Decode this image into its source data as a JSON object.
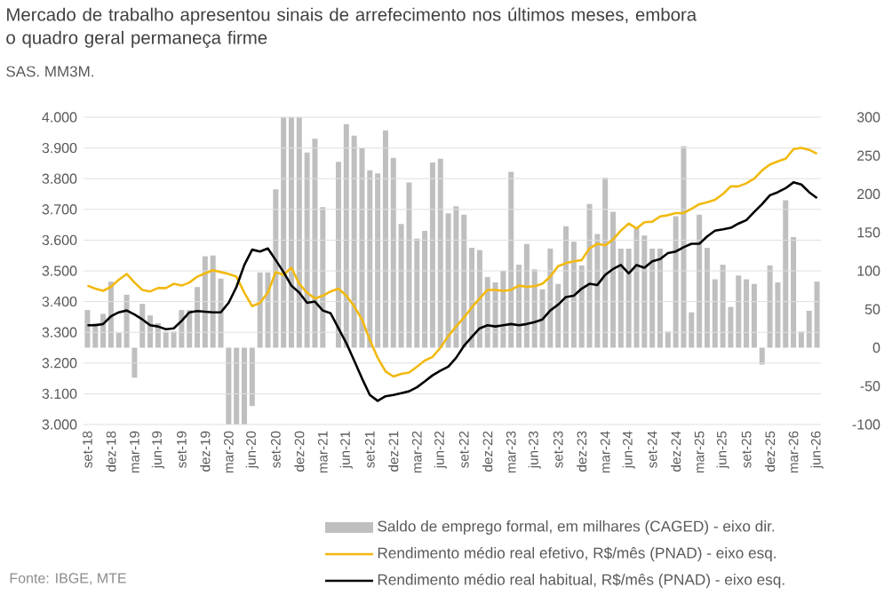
{
  "chart_data": {
    "type": "line",
    "title": "Mercado de trabalho apresentou sinais de arrefecimento nos últimos meses, embora o quadro geral permaneça firme",
    "subtitle": "SAS. MM3M.",
    "categories": [
      "set-18",
      null,
      null,
      "dez-18",
      null,
      null,
      "mar-19",
      null,
      null,
      "jun-19",
      null,
      null,
      "set-19",
      null,
      null,
      "dez-19",
      null,
      null,
      "mar-20",
      null,
      null,
      "jun-20",
      null,
      null,
      "set-20",
      null,
      null,
      "dez-20",
      null,
      null,
      "mar-21",
      null,
      null,
      "jun-21",
      null,
      null,
      "set-21",
      null,
      null,
      "dez-21",
      null,
      null,
      "mar-22",
      null,
      null,
      "jun-22",
      null,
      null,
      "set-22",
      null,
      null,
      "dez-22",
      null,
      null,
      "mar-23",
      null,
      null,
      "jun-23",
      null,
      null,
      "set-23",
      null,
      null,
      "dez-23",
      null,
      null,
      "mar-24",
      null,
      null,
      "jun-24",
      null,
      null,
      "set-24",
      null,
      null,
      "dez-24",
      null,
      null,
      "mar-25",
      null,
      null,
      "jun-25",
      null,
      null,
      "set-25",
      null,
      null,
      "dez-25",
      null,
      null,
      "mar-26",
      null,
      null,
      "jun-26"
    ],
    "series": [
      {
        "name": "Saldo de emprego formal, em milhares (CAGED) - eixo dir.",
        "type": "bar",
        "axis": "y2",
        "color": "#bfbfbf",
        "values": [
          49,
          32,
          44,
          86,
          19,
          69,
          -39,
          57,
          42,
          32,
          21,
          21,
          49,
          49,
          79,
          119,
          120,
          90,
          -100,
          -100,
          -100,
          -76,
          98,
          98,
          206,
          300,
          300,
          300,
          254,
          272,
          183,
          null,
          242,
          291,
          276,
          260,
          231,
          227,
          283,
          247,
          161,
          215,
          142,
          152,
          241,
          246,
          175,
          184,
          173,
          130,
          127,
          92,
          85,
          100,
          229,
          108,
          135,
          102,
          76,
          129,
          83,
          158,
          138,
          107,
          187,
          148,
          221,
          177,
          129,
          129,
          156,
          146,
          129,
          129,
          21,
          171,
          262,
          46,
          173,
          130,
          89,
          108,
          53,
          94,
          89,
          83,
          -22,
          107,
          85,
          192,
          144,
          21,
          48,
          86
        ]
      },
      {
        "name": "Rendimento médio real efetivo, R$/mês (PNAD) - eixo esq.",
        "axis": "y",
        "color": "#f2b90f",
        "values": [
          3452,
          3442,
          3435,
          3448,
          3471,
          3490,
          3462,
          3438,
          3433,
          3444,
          3444,
          3458,
          3452,
          3462,
          3481,
          3492,
          3502,
          3496,
          3490,
          3481,
          3429,
          3385,
          3396,
          3429,
          3496,
          3487,
          3510,
          3458,
          3429,
          3410,
          3419,
          3433,
          3442,
          3419,
          3385,
          3342,
          3275,
          3217,
          3173,
          3156,
          3165,
          3169,
          3188,
          3208,
          3220,
          3250,
          3288,
          3319,
          3348,
          3381,
          3410,
          3438,
          3438,
          3435,
          3438,
          3452,
          3448,
          3450,
          3458,
          3481,
          3515,
          3525,
          3531,
          3535,
          3573,
          3588,
          3583,
          3602,
          3631,
          3654,
          3638,
          3658,
          3660,
          3677,
          3681,
          3688,
          3688,
          3702,
          3717,
          3723,
          3731,
          3750,
          3775,
          3775,
          3785,
          3800,
          3827,
          3846,
          3856,
          3865,
          3896,
          3900,
          3894,
          3881
        ]
      },
      {
        "name": "Rendimento médio real habitual, R$/mês (PNAD) - eixo esq.",
        "axis": "y",
        "color": "#000000",
        "values": [
          3323,
          3323,
          3327,
          3352,
          3365,
          3371,
          3358,
          3342,
          3323,
          3319,
          3310,
          3313,
          3337,
          3365,
          3369,
          3367,
          3365,
          3365,
          3396,
          3448,
          3519,
          3569,
          3563,
          3573,
          3535,
          3496,
          3452,
          3429,
          3396,
          3400,
          3371,
          3362,
          3313,
          3265,
          3208,
          3150,
          3096,
          3077,
          3092,
          3096,
          3102,
          3108,
          3121,
          3140,
          3160,
          3175,
          3188,
          3217,
          3256,
          3285,
          3313,
          3323,
          3319,
          3323,
          3327,
          3323,
          3327,
          3333,
          3342,
          3371,
          3390,
          3415,
          3419,
          3442,
          3458,
          3454,
          3487,
          3506,
          3519,
          3492,
          3519,
          3510,
          3531,
          3538,
          3558,
          3563,
          3577,
          3588,
          3588,
          3612,
          3631,
          3635,
          3640,
          3654,
          3665,
          3692,
          3717,
          3746,
          3756,
          3769,
          3788,
          3781,
          3756,
          3737
        ]
      }
    ],
    "ylim": [
      3000,
      4000
    ],
    "yticks": [
      {
        "value": 3000,
        "label": "3.000"
      },
      {
        "value": 3100,
        "label": "3.100"
      },
      {
        "value": 3200,
        "label": "3.200"
      },
      {
        "value": 3300,
        "label": "3.300"
      },
      {
        "value": 3400,
        "label": "3.400"
      },
      {
        "value": 3500,
        "label": "3.500"
      },
      {
        "value": 3600,
        "label": "3.600"
      },
      {
        "value": 3700,
        "label": "3.700"
      },
      {
        "value": 3800,
        "label": "3.800"
      },
      {
        "value": 3900,
        "label": "3.900"
      },
      {
        "value": 4000,
        "label": "4.000"
      }
    ],
    "y2lim": [
      -100,
      300
    ],
    "y2ticks": [
      -100,
      -50,
      0,
      50,
      100,
      150,
      200,
      250,
      300
    ],
    "grid": "y",
    "legend": "bottom",
    "annotations": [
      "Fonte: IBGE, MTE"
    ]
  }
}
